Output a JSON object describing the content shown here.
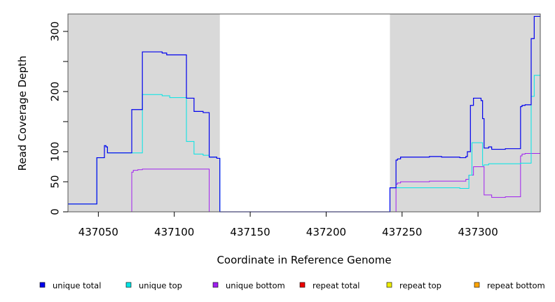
{
  "chart_data": {
    "type": "line",
    "title": "",
    "xlabel": "Coordinate in Reference Genome",
    "ylabel": "Read Coverage Depth",
    "xlim": [
      437030,
      437341
    ],
    "ylim": [
      0,
      329
    ],
    "x_ticks": [
      437050,
      437100,
      437150,
      437200,
      437250,
      437300
    ],
    "y_ticks": [
      0,
      50,
      100,
      150,
      200,
      250,
      300
    ],
    "y_tick_labels_shown": [
      "0",
      "50",
      "100",
      "200",
      "300"
    ],
    "shaded_regions": [
      {
        "x_start": 437030,
        "x_end": 437130,
        "color": "#d9d9d9"
      },
      {
        "x_start": 437242,
        "x_end": 437341,
        "color": "#d9d9d9"
      }
    ],
    "series": [
      {
        "name": "unique total",
        "color": "#0000ee",
        "points": [
          [
            437030,
            13
          ],
          [
            437049,
            13
          ],
          [
            437049,
            90
          ],
          [
            437054,
            90
          ],
          [
            437054,
            110
          ],
          [
            437055,
            110
          ],
          [
            437055,
            108
          ],
          [
            437056,
            108
          ],
          [
            437056,
            98
          ],
          [
            437072,
            98
          ],
          [
            437072,
            170
          ],
          [
            437079,
            170
          ],
          [
            437079,
            266
          ],
          [
            437092,
            266
          ],
          [
            437092,
            264
          ],
          [
            437095,
            264
          ],
          [
            437095,
            261
          ],
          [
            437108,
            261
          ],
          [
            437108,
            189
          ],
          [
            437113,
            189
          ],
          [
            437113,
            167
          ],
          [
            437119,
            167
          ],
          [
            437119,
            165
          ],
          [
            437123,
            165
          ],
          [
            437123,
            91
          ],
          [
            437128,
            91
          ],
          [
            437128,
            89
          ],
          [
            437130,
            89
          ],
          [
            437130,
            0
          ],
          [
            437242,
            0
          ],
          [
            437242,
            40
          ],
          [
            437246,
            40
          ],
          [
            437246,
            86
          ],
          [
            437247,
            86
          ],
          [
            437247,
            88
          ],
          [
            437249,
            88
          ],
          [
            437249,
            91
          ],
          [
            437268,
            91
          ],
          [
            437268,
            92
          ],
          [
            437276,
            92
          ],
          [
            437276,
            91
          ],
          [
            437288,
            91
          ],
          [
            437288,
            90
          ],
          [
            437292,
            90
          ],
          [
            437292,
            92
          ],
          [
            437293,
            92
          ],
          [
            437293,
            100
          ],
          [
            437295,
            100
          ],
          [
            437295,
            177
          ],
          [
            437297,
            177
          ],
          [
            437297,
            189
          ],
          [
            437302,
            189
          ],
          [
            437302,
            185
          ],
          [
            437303,
            185
          ],
          [
            437303,
            155
          ],
          [
            437304,
            155
          ],
          [
            437304,
            106
          ],
          [
            437307,
            106
          ],
          [
            437307,
            108
          ],
          [
            437309,
            108
          ],
          [
            437309,
            104
          ],
          [
            437318,
            104
          ],
          [
            437318,
            105
          ],
          [
            437328,
            105
          ],
          [
            437328,
            175
          ],
          [
            437329,
            175
          ],
          [
            437329,
            177
          ],
          [
            437331,
            177
          ],
          [
            437331,
            178
          ],
          [
            437335,
            178
          ],
          [
            437335,
            288
          ],
          [
            437337,
            288
          ],
          [
            437337,
            325
          ],
          [
            437341,
            325
          ]
        ]
      },
      {
        "name": "unique top",
        "color": "#00e5e5",
        "points": [
          [
            437030,
            13
          ],
          [
            437049,
            13
          ],
          [
            437049,
            90
          ],
          [
            437054,
            90
          ],
          [
            437054,
            110
          ],
          [
            437055,
            110
          ],
          [
            437055,
            108
          ],
          [
            437056,
            108
          ],
          [
            437056,
            98
          ],
          [
            437079,
            98
          ],
          [
            437079,
            195
          ],
          [
            437092,
            195
          ],
          [
            437092,
            193
          ],
          [
            437097,
            193
          ],
          [
            437097,
            190
          ],
          [
            437108,
            190
          ],
          [
            437108,
            117
          ],
          [
            437113,
            117
          ],
          [
            437113,
            96
          ],
          [
            437119,
            96
          ],
          [
            437119,
            94
          ],
          [
            437123,
            94
          ],
          [
            437123,
            91
          ],
          [
            437128,
            91
          ],
          [
            437128,
            89
          ],
          [
            437130,
            89
          ],
          [
            437130,
            0
          ],
          [
            437242,
            0
          ],
          [
            437242,
            40
          ],
          [
            437288,
            40
          ],
          [
            437288,
            39
          ],
          [
            437294,
            39
          ],
          [
            437294,
            61
          ],
          [
            437296,
            61
          ],
          [
            437296,
            115
          ],
          [
            437303,
            115
          ],
          [
            437303,
            77
          ],
          [
            437304,
            77
          ],
          [
            437304,
            78
          ],
          [
            437307,
            78
          ],
          [
            437307,
            80
          ],
          [
            437328,
            80
          ],
          [
            437328,
            81
          ],
          [
            437335,
            81
          ],
          [
            437335,
            192
          ],
          [
            437337,
            192
          ],
          [
            437337,
            227
          ],
          [
            437341,
            227
          ]
        ]
      },
      {
        "name": "unique bottom",
        "color": "#a020f0",
        "points": [
          [
            437030,
            0
          ],
          [
            437072,
            0
          ],
          [
            437072,
            66
          ],
          [
            437073,
            66
          ],
          [
            437073,
            69
          ],
          [
            437076,
            69
          ],
          [
            437076,
            70
          ],
          [
            437079,
            70
          ],
          [
            437079,
            71
          ],
          [
            437123,
            71
          ],
          [
            437123,
            0
          ],
          [
            437246,
            0
          ],
          [
            437246,
            46
          ],
          [
            437247,
            46
          ],
          [
            437247,
            48
          ],
          [
            437249,
            48
          ],
          [
            437249,
            50
          ],
          [
            437268,
            50
          ],
          [
            437268,
            51
          ],
          [
            437292,
            51
          ],
          [
            437292,
            54
          ],
          [
            437294,
            54
          ],
          [
            437294,
            61
          ],
          [
            437297,
            61
          ],
          [
            437297,
            75
          ],
          [
            437304,
            75
          ],
          [
            437304,
            28
          ],
          [
            437309,
            28
          ],
          [
            437309,
            24
          ],
          [
            437318,
            24
          ],
          [
            437318,
            25
          ],
          [
            437328,
            25
          ],
          [
            437328,
            93
          ],
          [
            437329,
            93
          ],
          [
            437329,
            96
          ],
          [
            437331,
            96
          ],
          [
            437331,
            97
          ],
          [
            437341,
            97
          ]
        ]
      },
      {
        "name": "repeat total",
        "color": "#ee0000",
        "points": [
          [
            437030,
            0
          ],
          [
            437341,
            0
          ]
        ]
      },
      {
        "name": "repeat top",
        "color": "#eeee00",
        "points": [
          [
            437030,
            0
          ],
          [
            437341,
            0
          ]
        ]
      },
      {
        "name": "repeat bottom",
        "color": "#ffa500",
        "points": [
          [
            437030,
            0
          ],
          [
            437341,
            0
          ]
        ]
      }
    ],
    "legend": {
      "placement": "bottom",
      "entries": [
        {
          "label": "unique total",
          "color": "#0000ee"
        },
        {
          "label": "unique top",
          "color": "#00e5e5"
        },
        {
          "label": "unique bottom",
          "color": "#a020f0"
        },
        {
          "label": "repeat total",
          "color": "#ee0000"
        },
        {
          "label": "repeat top",
          "color": "#eeee00"
        },
        {
          "label": "repeat bottom",
          "color": "#ffa500"
        }
      ]
    }
  }
}
